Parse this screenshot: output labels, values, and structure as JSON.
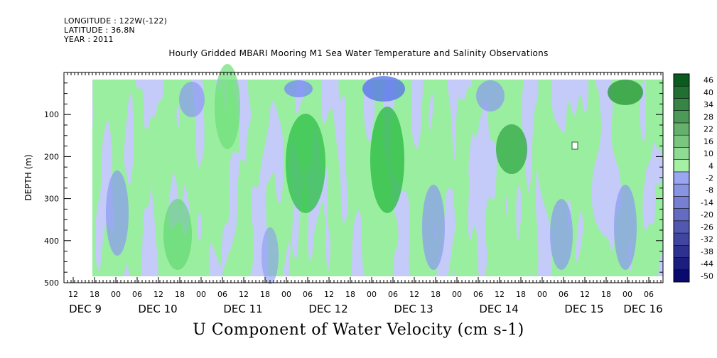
{
  "header": {
    "longitude": "LONGITUDE : 122W(-122)",
    "latitude": "LATITUDE : 36.8N",
    "year": "YEAR : 2011"
  },
  "chart_data": {
    "type": "heatmap",
    "title": "Hourly Gridded MBARI Mooring M1 Sea Water Temperature and Salinity Observations",
    "caption": "U Component of Water Velocity (cm s-1)",
    "xlabel": "",
    "ylabel": "DEPTH (m)",
    "ylim": [
      500,
      0
    ],
    "y_ticks": [
      100,
      200,
      300,
      400,
      500
    ],
    "y_axis_inverted": true,
    "x_hour_ticks": [
      "12",
      "18",
      "00",
      "06",
      "12",
      "18",
      "00",
      "06",
      "12",
      "18",
      "00",
      "06",
      "12",
      "18",
      "00",
      "06",
      "12",
      "18",
      "00",
      "06",
      "12",
      "18",
      "00",
      "06",
      "12",
      "18",
      "00",
      "06"
    ],
    "x_date_labels": [
      "DEC  9",
      "DEC 10",
      "DEC 11",
      "DEC 12",
      "DEC 13",
      "DEC 14",
      "DEC 15",
      "DEC 16"
    ],
    "colorbar": {
      "levels": [
        -50,
        -44,
        -38,
        -32,
        -26,
        -20,
        -14,
        -8,
        -2,
        4,
        10,
        16,
        22,
        28,
        34,
        40,
        46
      ],
      "labels": [
        "46",
        "40",
        "34",
        "28",
        "22",
        "16",
        "10",
        "4",
        "-2",
        "-8",
        "-14",
        "-20",
        "-26",
        "-32",
        "-38",
        "-44",
        "-50"
      ],
      "low_color": "#0a0a6e",
      "mid_low_color": "#9aa6f2",
      "mid_high_color": "#a6f0a6",
      "high_color": "#0b5a1e"
    },
    "data_extent": {
      "depth_top_m": 10,
      "depth_bottom_m": 490,
      "start": "Dec 8 17:00",
      "end": "Dec 16 12:00"
    },
    "grid": false
  }
}
